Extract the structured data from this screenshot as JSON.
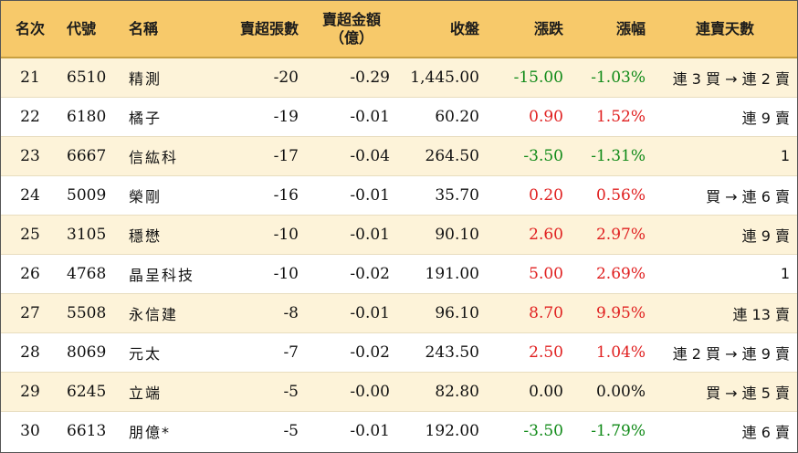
{
  "colors": {
    "header_bg": "#F7C96A",
    "row_odd_bg": "#FDF3D9",
    "row_even_bg": "#FFFFFF",
    "up": "#E02020",
    "down": "#108A18"
  },
  "headers": {
    "rank": "名次",
    "code": "代號",
    "name": "名稱",
    "lots": "賣超張數",
    "amount": "賣超金額\n（億）",
    "close": "收盤",
    "change": "漲跌",
    "pct": "漲幅",
    "streak": "連賣天數"
  },
  "rows": [
    {
      "rank": "21",
      "code": "6510",
      "name": "精測",
      "lots": "-20",
      "amount": "-0.29",
      "close": "1,445.00",
      "change": "-15.00",
      "pct": "-1.03%",
      "dir": "down",
      "streak": "連 3 買 → 連 2 賣"
    },
    {
      "rank": "22",
      "code": "6180",
      "name": "橘子",
      "lots": "-19",
      "amount": "-0.01",
      "close": "60.20",
      "change": "0.90",
      "pct": "1.52%",
      "dir": "up",
      "streak": "連 9 賣"
    },
    {
      "rank": "23",
      "code": "6667",
      "name": "信紘科",
      "lots": "-17",
      "amount": "-0.04",
      "close": "264.50",
      "change": "-3.50",
      "pct": "-1.31%",
      "dir": "down",
      "streak": "1"
    },
    {
      "rank": "24",
      "code": "5009",
      "name": "榮剛",
      "lots": "-16",
      "amount": "-0.01",
      "close": "35.70",
      "change": "0.20",
      "pct": "0.56%",
      "dir": "up",
      "streak": "買 → 連 6 賣"
    },
    {
      "rank": "25",
      "code": "3105",
      "name": "穩懋",
      "lots": "-10",
      "amount": "-0.01",
      "close": "90.10",
      "change": "2.60",
      "pct": "2.97%",
      "dir": "up",
      "streak": "連 9 賣"
    },
    {
      "rank": "26",
      "code": "4768",
      "name": "晶呈科技",
      "lots": "-10",
      "amount": "-0.02",
      "close": "191.00",
      "change": "5.00",
      "pct": "2.69%",
      "dir": "up",
      "streak": "1"
    },
    {
      "rank": "27",
      "code": "5508",
      "name": "永信建",
      "lots": "-8",
      "amount": "-0.01",
      "close": "96.10",
      "change": "8.70",
      "pct": "9.95%",
      "dir": "up",
      "streak": "連 13 賣"
    },
    {
      "rank": "28",
      "code": "8069",
      "name": "元太",
      "lots": "-7",
      "amount": "-0.02",
      "close": "243.50",
      "change": "2.50",
      "pct": "1.04%",
      "dir": "up",
      "streak": "連 2 買 → 連 9 賣"
    },
    {
      "rank": "29",
      "code": "6245",
      "name": "立端",
      "lots": "-5",
      "amount": "-0.00",
      "close": "82.80",
      "change": "0.00",
      "pct": "0.00%",
      "dir": "flat",
      "streak": "買 → 連 5 賣"
    },
    {
      "rank": "30",
      "code": "6613",
      "name": "朋億*",
      "lots": "-5",
      "amount": "-0.01",
      "close": "192.00",
      "change": "-3.50",
      "pct": "-1.79%",
      "dir": "down",
      "streak": "連 6 賣"
    }
  ]
}
